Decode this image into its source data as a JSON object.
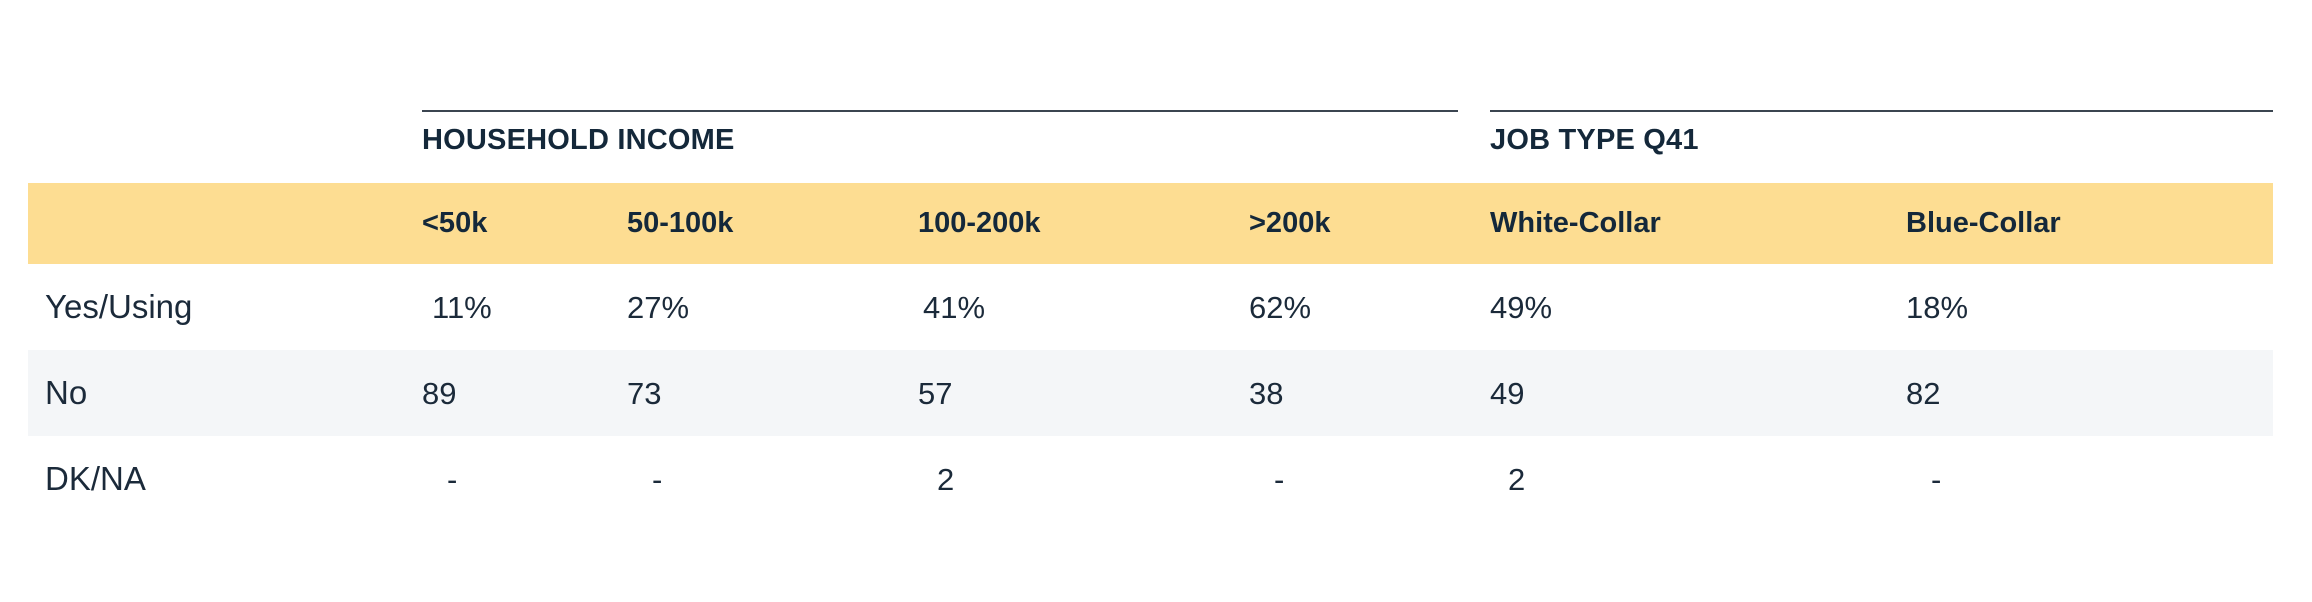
{
  "chart_data": {
    "type": "table",
    "groups": [
      {
        "label": "HOUSEHOLD INCOME",
        "columns": [
          "<50k",
          "50-100k",
          "100-200k",
          ">200k"
        ]
      },
      {
        "label": "JOB TYPE Q41",
        "columns": [
          "White-Collar",
          "Blue-Collar"
        ]
      }
    ],
    "columns": [
      "<50k",
      "50-100k",
      "100-200k",
      ">200k",
      "White-Collar",
      "Blue-Collar"
    ],
    "rows": [
      {
        "label": "Yes/Using",
        "values": [
          "11%",
          "27%",
          "41%",
          "62%",
          "49%",
          "18%"
        ]
      },
      {
        "label": "No",
        "values": [
          "89",
          "73",
          "57",
          "38",
          "49",
          "82"
        ]
      },
      {
        "label": "DK/NA",
        "values": [
          "-",
          "-",
          "2",
          "-",
          "2",
          "-"
        ]
      }
    ]
  },
  "colors": {
    "header_band": "#fddd92",
    "alt_row": "#f4f6f8",
    "text": "#1b2a3a",
    "rule": "#3b4550"
  }
}
